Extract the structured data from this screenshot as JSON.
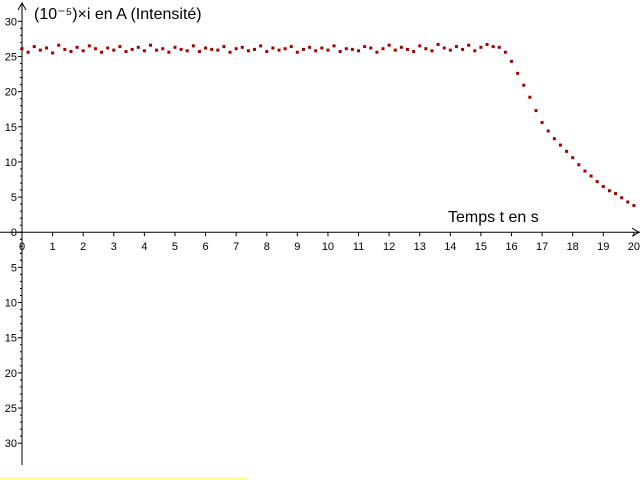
{
  "chart_data": {
    "type": "scatter",
    "x_label": "Temps t en s",
    "y_label": "(10⁻⁵)×i en A (Intensité)",
    "color": "#a00000",
    "xlim": [
      0,
      20.2
    ],
    "ylim": [
      -33.1,
      32.6
    ],
    "xticks": [
      0,
      1,
      2,
      3,
      4,
      5,
      6,
      7,
      8,
      9,
      10,
      11,
      12,
      13,
      14,
      15,
      16,
      17,
      18,
      19,
      20
    ],
    "yticks": [
      0,
      5,
      10,
      15,
      20,
      25,
      30,
      {
        "value": -5,
        "label": "5"
      },
      {
        "value": -10,
        "label": "10"
      },
      {
        "value": -15,
        "label": "15"
      },
      {
        "value": -20,
        "label": "20"
      },
      {
        "value": -25,
        "label": "25"
      },
      {
        "value": -30,
        "label": "30"
      }
    ],
    "x": [
      0,
      0.2,
      0.4,
      0.6,
      0.8,
      1,
      1.2,
      1.4,
      1.6,
      1.8,
      2,
      2.2,
      2.4,
      2.6,
      2.8,
      3,
      3.2,
      3.4,
      3.6,
      3.8,
      4,
      4.2,
      4.4,
      4.6,
      4.8,
      5,
      5.2,
      5.4,
      5.6,
      5.8,
      6,
      6.2,
      6.4,
      6.6,
      6.8,
      7,
      7.2,
      7.4,
      7.6,
      7.8,
      8,
      8.2,
      8.4,
      8.6,
      8.8,
      9,
      9.2,
      9.4,
      9.6,
      9.8,
      10,
      10.2,
      10.4,
      10.6,
      10.8,
      11,
      11.2,
      11.4,
      11.6,
      11.8,
      12,
      12.2,
      12.4,
      12.6,
      12.8,
      13,
      13.2,
      13.4,
      13.6,
      13.8,
      14,
      14.2,
      14.4,
      14.6,
      14.8,
      15,
      15.2,
      15.4,
      15.6,
      15.8,
      16,
      16.2,
      16.4,
      16.6,
      16.8,
      17,
      17.2,
      17.4,
      17.6,
      17.8,
      18,
      18.2,
      18.4,
      18.6,
      18.8,
      19,
      19.2,
      19.4,
      19.6,
      19.8,
      20
    ],
    "values": [
      26.1,
      25.6,
      26.4,
      25.9,
      26.2,
      25.5,
      26.6,
      26.0,
      25.7,
      26.3,
      25.8,
      26.5,
      26.1,
      25.6,
      26.2,
      25.9,
      26.4,
      25.7,
      26.0,
      26.3,
      25.8,
      26.6,
      25.9,
      26.1,
      25.6,
      26.3,
      26.0,
      25.8,
      26.5,
      25.7,
      26.2,
      26.0,
      25.9,
      26.4,
      25.6,
      26.1,
      26.3,
      25.8,
      26.0,
      26.5,
      25.7,
      26.2,
      25.9,
      26.1,
      26.4,
      25.6,
      26.0,
      26.3,
      25.8,
      26.2,
      25.9,
      26.5,
      25.7,
      26.1,
      26.0,
      25.8,
      26.4,
      26.2,
      25.6,
      26.1,
      26.6,
      25.9,
      26.3,
      26.0,
      25.7,
      26.5,
      26.1,
      25.8,
      26.7,
      26.2,
      25.9,
      26.4,
      26.0,
      26.6,
      25.8,
      26.3,
      26.7,
      26.4,
      26.3,
      25.6,
      24.3,
      22.6,
      20.9,
      19.2,
      17.3,
      15.6,
      14.4,
      13.3,
      12.4,
      11.5,
      10.6,
      9.6,
      8.7,
      8.0,
      7.2,
      6.5,
      5.9,
      5.5,
      4.9,
      4.3,
      3.8
    ]
  }
}
